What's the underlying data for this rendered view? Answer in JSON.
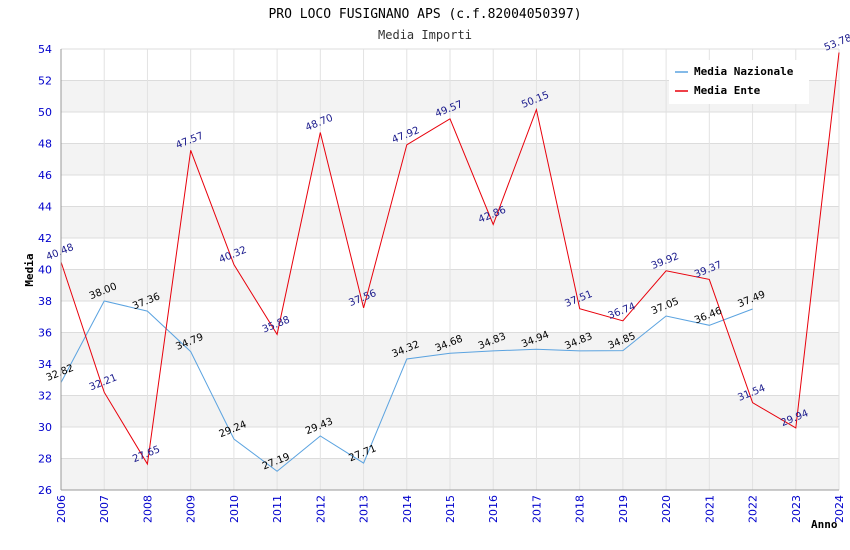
{
  "chart_data": {
    "type": "line",
    "title": "PRO LOCO FUSIGNANO APS (c.f.82004050397)",
    "subtitle": "Media Importi",
    "xlabel": "Anno",
    "ylabel": "Media",
    "ylim": [
      26,
      54
    ],
    "yticks": [
      "26",
      "28",
      "30",
      "32",
      "34",
      "36",
      "38",
      "40",
      "42",
      "44",
      "46",
      "48",
      "50",
      "52",
      "54"
    ],
    "x": [
      "2006",
      "2007",
      "2008",
      "2009",
      "2010",
      "2011",
      "2012",
      "2013",
      "2014",
      "2015",
      "2016",
      "2017",
      "2018",
      "2019",
      "2020",
      "2021",
      "2022",
      "2023",
      "2024"
    ],
    "legend_position": "top-right",
    "series": [
      {
        "name": "Media Nazionale",
        "color": "#5ba3e0",
        "values": [
          32.82,
          38.0,
          37.36,
          34.79,
          29.24,
          27.19,
          29.43,
          27.71,
          34.32,
          34.68,
          34.83,
          34.94,
          34.83,
          34.85,
          37.05,
          36.46,
          37.49,
          null,
          null
        ],
        "labels": [
          "32.82",
          "38.00",
          "37.36",
          "34.79",
          "29.24",
          "27.19",
          "29.43",
          "27.71",
          "34.32",
          "34.68",
          "34.83",
          "34.94",
          "34.83",
          "34.85",
          "37.05",
          "36.46",
          "37.49",
          null,
          null
        ]
      },
      {
        "name": "Media Ente",
        "color": "#e8000b",
        "values": [
          40.48,
          32.21,
          27.65,
          47.57,
          40.32,
          35.88,
          48.7,
          37.56,
          47.92,
          49.57,
          42.86,
          50.15,
          37.51,
          36.74,
          39.92,
          39.37,
          31.54,
          29.94,
          53.78
        ],
        "labels": [
          "40.48",
          "32.21",
          "27.65",
          "47.57",
          "40.32",
          "35.88",
          "48.70",
          "37.56",
          "47.92",
          "49.57",
          "42.86",
          "50.15",
          "37.51",
          "36.74",
          "39.92",
          "39.37",
          "31.54",
          "29.94",
          "53.78"
        ]
      }
    ]
  }
}
